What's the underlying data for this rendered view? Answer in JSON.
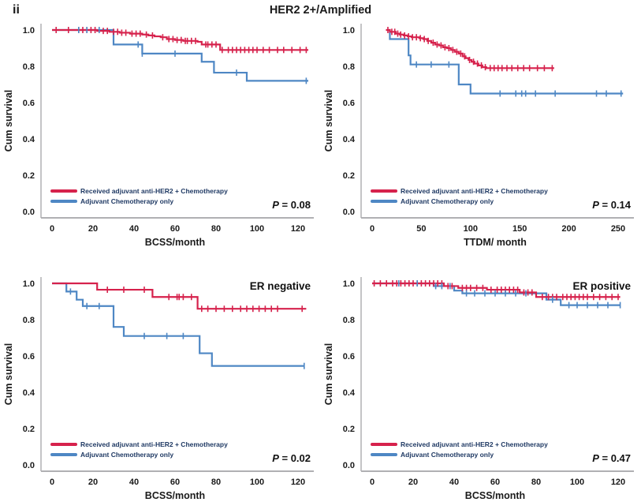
{
  "figure": {
    "panel_label": "ii",
    "title": "HER2 2+/Amplified",
    "colors": {
      "treated": "#d6224c",
      "control": "#4e87c4",
      "legend_text": "#203a64",
      "spine": "#b0b0b3",
      "text": "#1a1a1a"
    }
  },
  "chart_data": [
    {
      "id": "bcss-all",
      "type": "line",
      "subtype": "kaplan-meier-step",
      "annotation": "",
      "xlabel": "BCSS/month",
      "ylabel": "Cum survival",
      "xticks": [
        0,
        20,
        40,
        60,
        80,
        100,
        120
      ],
      "yticks": [
        0.0,
        0.2,
        0.4,
        0.6,
        0.8,
        1.0
      ],
      "xlim": [
        0,
        125
      ],
      "ylim": [
        0,
        1.05
      ],
      "p_value_text": "P = 0.08",
      "series": [
        {
          "name": "Received adjuvant anti-HER2 + Chemotherapy",
          "color_key": "treated",
          "steps": [
            [
              0,
              1.0
            ],
            [
              22,
              0.995
            ],
            [
              28,
              0.99
            ],
            [
              33,
              0.985
            ],
            [
              38,
              0.98
            ],
            [
              44,
              0.975
            ],
            [
              47,
              0.97
            ],
            [
              50,
              0.965
            ],
            [
              53,
              0.96
            ],
            [
              56,
              0.95
            ],
            [
              60,
              0.945
            ],
            [
              64,
              0.94
            ],
            [
              71,
              0.935
            ],
            [
              73,
              0.92
            ],
            [
              82,
              0.89
            ],
            [
              125,
              0.89
            ]
          ],
          "censors": [
            2,
            8,
            13,
            15,
            17,
            19,
            21,
            25,
            27,
            30,
            32,
            34,
            36,
            39,
            41,
            43,
            46,
            49,
            54,
            57,
            59,
            61,
            63,
            65,
            66,
            68,
            70,
            75,
            76,
            78,
            80,
            83,
            86,
            88,
            90,
            92,
            94,
            96,
            98,
            100,
            103,
            106,
            110,
            113,
            117,
            121,
            124
          ]
        },
        {
          "name": "Adjuvant Chemotherapy only",
          "color_key": "control",
          "steps": [
            [
              0,
              1.0
            ],
            [
              30,
              0.92
            ],
            [
              44,
              0.87
            ],
            [
              73,
              0.825
            ],
            [
              79,
              0.765
            ],
            [
              95,
              0.72
            ],
            [
              125,
              0.72
            ]
          ],
          "censors": [
            13,
            17,
            23,
            42,
            44,
            60,
            90,
            124
          ]
        }
      ]
    },
    {
      "id": "ttdm-all",
      "type": "line",
      "subtype": "kaplan-meier-step",
      "annotation": "",
      "xlabel": "TTDM/ month",
      "ylabel": "Cum survival",
      "xticks": [
        0,
        50,
        100,
        150,
        200,
        250
      ],
      "yticks": [
        0.0,
        0.2,
        0.4,
        0.6,
        0.8,
        1.0
      ],
      "xlim": [
        0,
        258
      ],
      "ylim": [
        0,
        1.05
      ],
      "p_value_text": "P = 0.14",
      "series": [
        {
          "name": "Received adjuvant anti-HER2 + Chemotherapy",
          "color_key": "treated",
          "steps": [
            [
              14,
              1.0
            ],
            [
              18,
              0.99
            ],
            [
              24,
              0.98
            ],
            [
              28,
              0.975
            ],
            [
              32,
              0.97
            ],
            [
              36,
              0.965
            ],
            [
              40,
              0.96
            ],
            [
              48,
              0.955
            ],
            [
              52,
              0.95
            ],
            [
              56,
              0.94
            ],
            [
              60,
              0.93
            ],
            [
              64,
              0.92
            ],
            [
              68,
              0.915
            ],
            [
              72,
              0.905
            ],
            [
              76,
              0.9
            ],
            [
              80,
              0.89
            ],
            [
              84,
              0.88
            ],
            [
              88,
              0.87
            ],
            [
              92,
              0.855
            ],
            [
              95,
              0.845
            ],
            [
              98,
              0.835
            ],
            [
              101,
              0.825
            ],
            [
              104,
              0.815
            ],
            [
              108,
              0.805
            ],
            [
              112,
              0.795
            ],
            [
              116,
              0.79
            ],
            [
              185,
              0.79
            ]
          ],
          "censors": [
            16,
            20,
            23,
            26,
            29,
            33,
            37,
            41,
            45,
            49,
            53,
            57,
            62,
            66,
            70,
            74,
            78,
            82,
            86,
            90,
            94,
            99,
            103,
            107,
            111,
            115,
            120,
            124,
            128,
            132,
            137,
            142,
            148,
            154,
            160,
            168,
            175,
            183
          ]
        },
        {
          "name": "Adjuvant Chemotherapy only",
          "color_key": "control",
          "steps": [
            [
              15,
              1.0
            ],
            [
              18,
              0.95
            ],
            [
              37,
              0.86
            ],
            [
              39,
              0.81
            ],
            [
              88,
              0.7
            ],
            [
              100,
              0.65
            ],
            [
              255,
              0.65
            ]
          ],
          "censors": [
            45,
            60,
            78,
            130,
            146,
            152,
            156,
            166,
            186,
            228,
            238,
            253
          ]
        }
      ]
    },
    {
      "id": "bcss-er-negative",
      "type": "line",
      "subtype": "kaplan-meier-step",
      "annotation": "ER negative",
      "xlabel": "BCSS/month",
      "ylabel": "Cum survival",
      "xticks": [
        0,
        20,
        40,
        60,
        80,
        100,
        120
      ],
      "yticks": [
        0.0,
        0.2,
        0.4,
        0.6,
        0.8,
        1.0
      ],
      "xlim": [
        0,
        125
      ],
      "ylim": [
        0,
        1.05
      ],
      "p_value_text": "P = 0.02",
      "series": [
        {
          "name": "Received adjuvant anti-HER2 + Chemotherapy",
          "color_key": "treated",
          "steps": [
            [
              0,
              1.0
            ],
            [
              22,
              0.965
            ],
            [
              49,
              0.925
            ],
            [
              71,
              0.86
            ],
            [
              124,
              0.86
            ]
          ],
          "censors": [
            27,
            35,
            45,
            57,
            61,
            62,
            64,
            68,
            73,
            76,
            80,
            84,
            88,
            92,
            95,
            98,
            101,
            104,
            107,
            110,
            122
          ]
        },
        {
          "name": "Adjuvant Chemotherapy only",
          "color_key": "control",
          "steps": [
            [
              0,
              1.0
            ],
            [
              7,
              0.955
            ],
            [
              12,
              0.91
            ],
            [
              15,
              0.875
            ],
            [
              30,
              0.76
            ],
            [
              35,
              0.71
            ],
            [
              72,
              0.615
            ],
            [
              78,
              0.545
            ],
            [
              123,
              0.545
            ]
          ],
          "censors": [
            9,
            17,
            23,
            45,
            56,
            64,
            123
          ]
        }
      ]
    },
    {
      "id": "bcss-er-positive",
      "type": "line",
      "subtype": "kaplan-meier-step",
      "annotation": "ER positive",
      "xlabel": "BCSS/month",
      "ylabel": "Cum survival",
      "xticks": [
        0,
        20,
        40,
        60,
        80,
        100,
        120
      ],
      "yticks": [
        0.0,
        0.2,
        0.4,
        0.6,
        0.8,
        1.0
      ],
      "xlim": [
        0,
        125
      ],
      "ylim": [
        0,
        1.05
      ],
      "p_value_text": "P = 0.47",
      "series": [
        {
          "name": "Received adjuvant anti-HER2 + Chemotherapy",
          "color_key": "treated",
          "steps": [
            [
              0,
              1.0
            ],
            [
              35,
              0.985
            ],
            [
              42,
              0.975
            ],
            [
              56,
              0.965
            ],
            [
              72,
              0.95
            ],
            [
              80,
              0.925
            ],
            [
              121,
              0.925
            ]
          ],
          "censors": [
            1,
            4,
            7,
            10,
            12,
            14,
            16,
            18,
            20,
            22,
            24,
            26,
            28,
            30,
            32,
            34,
            37,
            39,
            44,
            46,
            48,
            51,
            54,
            58,
            61,
            63,
            65,
            67,
            69,
            71,
            74,
            76,
            78,
            83,
            86,
            88,
            90,
            93,
            95,
            97,
            99,
            101,
            103,
            105,
            108,
            111,
            114,
            117,
            120
          ],
          "start_censor": true
        },
        {
          "name": "Adjuvant Chemotherapy only",
          "color_key": "control",
          "steps": [
            [
              0,
              1.0
            ],
            [
              30,
              0.985
            ],
            [
              40,
              0.96
            ],
            [
              44,
              0.945
            ],
            [
              85,
              0.91
            ],
            [
              92,
              0.88
            ],
            [
              121,
              0.88
            ]
          ],
          "censors": [
            13,
            22,
            31,
            34,
            38,
            46,
            50,
            55,
            60,
            65,
            70,
            75,
            88,
            96,
            100,
            105,
            110,
            115,
            121
          ]
        }
      ]
    }
  ]
}
